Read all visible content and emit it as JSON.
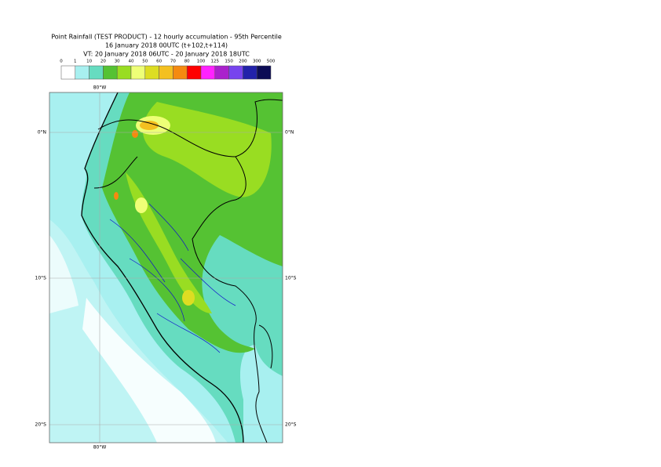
{
  "header": {
    "lines": [
      "Point Rainfall (TEST PRODUCT) - 12 hourly accumulation - 95th Percentile",
      "16 January 2018 00UTC (t+102,t+114)",
      "VT: 20 January 2018 06UTC - 20 January 2018 18UTC"
    ]
  },
  "legend": {
    "labels": [
      "0",
      "1",
      "10",
      "20",
      "30",
      "40",
      "50",
      "60",
      "70",
      "80",
      "100",
      "125",
      "150",
      "200",
      "300",
      "500"
    ],
    "colors": [
      "#ffffff",
      "#a8f0f0",
      "#66dcc0",
      "#55c233",
      "#99dd22",
      "#eeff77",
      "#dddd22",
      "#f4c020",
      "#f58a10",
      "#ff0000",
      "#ff22ff",
      "#aa22cc",
      "#7744ee",
      "#2222aa",
      "#0c0c55"
    ]
  },
  "map": {
    "lon_labels": [
      "80°W",
      "80°W"
    ],
    "lat_labels": [
      "0°N",
      "10°S",
      "20°S"
    ]
  }
}
